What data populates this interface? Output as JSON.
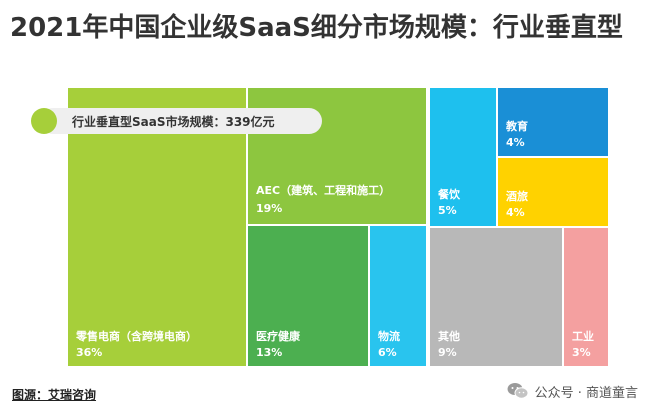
{
  "title": "2021年中国企业级SaaS细分市场规模：行业垂直型",
  "callout": "行业垂直型SaaS市场规模：339亿元",
  "source": "图源：艾瑞咨询",
  "watermark": {
    "text": "公众号 · 商道童言",
    "icon": "wechat-icon"
  },
  "chart_data": {
    "type": "treemap",
    "title": "2021年中国企业级SaaS细分市场规模：行业垂直型",
    "total": "339亿元",
    "unit": "%",
    "cells": [
      {
        "name": "零售电商（含跨境电商）",
        "value": 36,
        "label": "36%",
        "color": "#a6cf3a"
      },
      {
        "name": "AEC（建筑、工程和施工）",
        "value": 19,
        "label": "19%",
        "color": "#8dc63f"
      },
      {
        "name": "医疗健康",
        "value": 13,
        "label": "13%",
        "color": "#4caf50"
      },
      {
        "name": "物流",
        "value": 6,
        "label": "6%",
        "color": "#29c4ee"
      },
      {
        "name": "餐饮",
        "value": 5,
        "label": "5%",
        "color": "#1ec0ee"
      },
      {
        "name": "教育",
        "value": 4,
        "label": "4%",
        "color": "#1a8fd6"
      },
      {
        "name": "酒旅",
        "value": 4,
        "label": "4%",
        "color": "#ffd200"
      },
      {
        "name": "其他",
        "value": 9,
        "label": "9%",
        "color": "#b8b8b8"
      },
      {
        "name": "工业",
        "value": 3,
        "label": "3%",
        "color": "#f4a0a0"
      }
    ]
  }
}
